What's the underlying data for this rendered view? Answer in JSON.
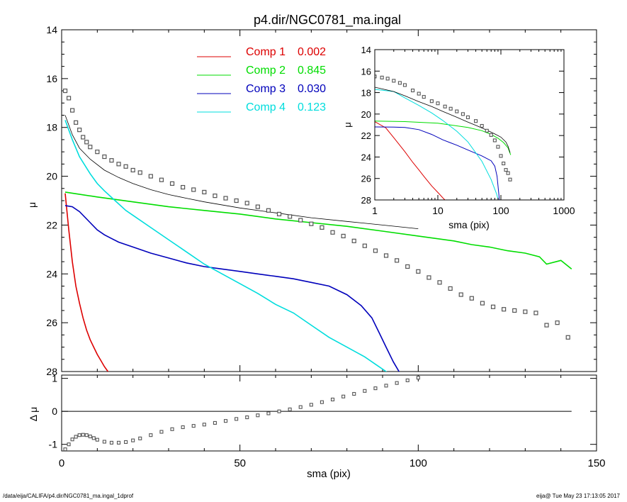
{
  "title": "p4.dir/NGC0781_ma.ingal",
  "footer": {
    "left": "/data/eija/CALIFA/p4.dir/NGC0781_ma.ingal_1dprof",
    "right": "eija@  Tue May 23 17:13:05 2017"
  },
  "chart_data": [
    {
      "type": "scatter",
      "panel": "main",
      "xlabel": "",
      "ylabel": "μ",
      "xlim": [
        0,
        150
      ],
      "ylim": [
        28,
        14
      ],
      "y_reversed": true,
      "yticks": [
        14,
        16,
        18,
        20,
        22,
        24,
        26,
        28
      ],
      "legend_placement": "top-center",
      "legend": [
        {
          "name": "Comp 1",
          "value": "0.002",
          "color": "#dd0000"
        },
        {
          "name": "Comp 2",
          "value": "0.845",
          "color": "#00dd00"
        },
        {
          "name": "Comp 3",
          "value": "0.030",
          "color": "#0000bb"
        },
        {
          "name": "Comp 4",
          "value": "0.123",
          "color": "#00dddd"
        }
      ],
      "observed": {
        "color": "#555555",
        "x": [
          1,
          2,
          3,
          4,
          5,
          6,
          7,
          8,
          10,
          12,
          14,
          16,
          18,
          20,
          22,
          25,
          28,
          31,
          34,
          37,
          40,
          43,
          46,
          49,
          52,
          55,
          58,
          61,
          64,
          67,
          70,
          73,
          76,
          79,
          82,
          85,
          88,
          91,
          94,
          97,
          100,
          103,
          106,
          109,
          112,
          115,
          118,
          121,
          124,
          127,
          130,
          133,
          136,
          139,
          142
        ],
        "y": [
          16.5,
          16.8,
          17.3,
          17.8,
          18.1,
          18.4,
          18.6,
          18.8,
          19.0,
          19.2,
          19.35,
          19.5,
          19.6,
          19.75,
          19.85,
          20.0,
          20.15,
          20.3,
          20.45,
          20.55,
          20.65,
          20.8,
          20.9,
          21.0,
          21.1,
          21.25,
          21.4,
          21.55,
          21.65,
          21.8,
          21.95,
          22.1,
          22.3,
          22.45,
          22.65,
          22.85,
          23.05,
          23.25,
          23.45,
          23.7,
          23.9,
          24.15,
          24.35,
          24.6,
          24.85,
          25.0,
          25.2,
          25.35,
          25.45,
          25.5,
          25.55,
          25.6,
          26.1,
          26.0,
          26.6
        ]
      },
      "model": {
        "color": "#000000",
        "x": [
          1,
          3,
          5,
          8,
          12,
          16,
          20,
          25,
          30,
          35,
          40,
          50,
          60,
          70,
          80,
          90,
          100
        ],
        "y": [
          17.5,
          18.3,
          18.85,
          19.3,
          19.75,
          20.05,
          20.3,
          20.55,
          20.75,
          20.9,
          21.05,
          21.3,
          21.5,
          21.7,
          21.85,
          22.0,
          22.15
        ]
      },
      "components": [
        {
          "name": "Comp 1",
          "color": "#dd0000",
          "x": [
            1,
            2,
            3,
            4,
            5,
            6,
            7,
            8,
            9,
            10,
            11,
            12,
            13,
            14
          ],
          "y": [
            20.7,
            22.2,
            23.5,
            24.5,
            25.2,
            25.8,
            26.3,
            26.7,
            27.0,
            27.3,
            27.55,
            27.8,
            28.0,
            28.2
          ]
        },
        {
          "name": "Comp 2",
          "color": "#00dd00",
          "x": [
            1,
            10,
            20,
            30,
            40,
            50,
            60,
            70,
            80,
            90,
            100,
            110,
            115,
            120,
            125,
            130,
            134,
            136,
            140,
            143
          ],
          "y": [
            20.65,
            20.85,
            21.05,
            21.25,
            21.4,
            21.55,
            21.75,
            21.9,
            22.05,
            22.25,
            22.45,
            22.65,
            22.8,
            22.9,
            23.05,
            23.15,
            23.3,
            23.6,
            23.45,
            23.8
          ]
        },
        {
          "name": "Comp 3",
          "color": "#0000bb",
          "x": [
            1,
            3,
            5,
            8,
            10,
            12,
            14,
            16,
            20,
            25,
            30,
            35,
            40,
            45,
            50,
            55,
            60,
            65,
            70,
            75,
            80,
            84,
            87,
            89,
            91,
            93,
            95,
            96
          ],
          "y": [
            21.2,
            21.25,
            21.45,
            21.9,
            22.2,
            22.4,
            22.55,
            22.7,
            22.9,
            23.15,
            23.35,
            23.55,
            23.7,
            23.8,
            23.9,
            24.0,
            24.1,
            24.2,
            24.35,
            24.5,
            24.85,
            25.3,
            25.8,
            26.4,
            27.0,
            27.6,
            28.1,
            28.3
          ]
        },
        {
          "name": "Comp 4",
          "color": "#00dddd",
          "x": [
            1,
            3,
            5,
            8,
            10,
            12,
            15,
            18,
            20,
            25,
            30,
            35,
            40,
            45,
            50,
            55,
            60,
            65,
            70,
            75,
            80,
            85,
            88,
            91,
            94,
            95
          ],
          "y": [
            17.7,
            18.5,
            19.2,
            19.9,
            20.3,
            20.6,
            21.0,
            21.4,
            21.6,
            22.1,
            22.6,
            23.1,
            23.6,
            24.0,
            24.4,
            24.8,
            25.25,
            25.6,
            26.1,
            26.6,
            27.0,
            27.4,
            27.7,
            28.0,
            28.3,
            28.4
          ]
        }
      ]
    },
    {
      "type": "scatter",
      "panel": "residual",
      "xlabel": "sma (pix)",
      "ylabel": "Δ μ",
      "xlim": [
        0,
        150
      ],
      "ylim": [
        -1.2,
        1.1
      ],
      "xticks": [
        0,
        50,
        100,
        150
      ],
      "yticks": [
        -1,
        0,
        1
      ],
      "zero_line": {
        "x": [
          0,
          143
        ],
        "y": 0
      },
      "residual": {
        "x": [
          1,
          2,
          3,
          4,
          5,
          6,
          7,
          8,
          9,
          10,
          12,
          14,
          16,
          18,
          20,
          22,
          25,
          28,
          31,
          34,
          37,
          40,
          43,
          46,
          49,
          52,
          55,
          58,
          61,
          64,
          67,
          70,
          73,
          76,
          79,
          82,
          85,
          88,
          91,
          94,
          97,
          100
        ],
        "y": [
          -1.15,
          -1.0,
          -0.85,
          -0.77,
          -0.72,
          -0.71,
          -0.72,
          -0.76,
          -0.81,
          -0.86,
          -0.92,
          -0.95,
          -0.95,
          -0.93,
          -0.88,
          -0.82,
          -0.72,
          -0.62,
          -0.54,
          -0.48,
          -0.44,
          -0.4,
          -0.35,
          -0.29,
          -0.23,
          -0.18,
          -0.12,
          -0.06,
          0.0,
          0.06,
          0.13,
          0.2,
          0.28,
          0.36,
          0.45,
          0.53,
          0.62,
          0.7,
          0.78,
          0.86,
          0.94,
          1.02
        ]
      }
    },
    {
      "type": "scatter",
      "panel": "inset",
      "xlabel": "sma (pix)",
      "ylabel": "μ",
      "x_scale": "log",
      "xlim": [
        1,
        1000
      ],
      "ylim": [
        28,
        14
      ],
      "y_reversed": true,
      "xticks": [
        1,
        10,
        100,
        1000
      ],
      "yticks": [
        14,
        16,
        18,
        20,
        22,
        24,
        26,
        28
      ],
      "observed": {
        "color": "#555555",
        "x": [
          1,
          1.3,
          1.6,
          2,
          2.5,
          3,
          4,
          5,
          6,
          8,
          10,
          13,
          16,
          20,
          25,
          30,
          40,
          50,
          60,
          70,
          80,
          90,
          100,
          110,
          120,
          130,
          140
        ],
        "y": [
          16.5,
          16.6,
          16.7,
          16.9,
          17.1,
          17.3,
          17.8,
          18.1,
          18.4,
          18.8,
          19.0,
          19.3,
          19.5,
          19.75,
          20.0,
          20.3,
          20.65,
          21.1,
          21.55,
          21.95,
          22.45,
          23.05,
          23.9,
          24.6,
          25.2,
          25.5,
          26.1
        ]
      },
      "model": {
        "color": "#000000",
        "x": [
          1,
          2,
          3,
          5,
          8,
          12,
          20,
          30,
          40,
          60,
          80,
          100,
          120,
          130,
          140
        ],
        "y": [
          17.5,
          17.9,
          18.3,
          18.85,
          19.3,
          19.75,
          20.3,
          20.75,
          21.05,
          21.5,
          21.85,
          22.15,
          22.6,
          23.0,
          23.6
        ]
      },
      "components": [
        {
          "name": "Comp 1",
          "color": "#dd0000",
          "x": [
            1,
            1.5,
            2,
            3,
            4,
            5,
            6,
            8,
            10,
            12,
            14
          ],
          "y": [
            20.7,
            21.3,
            22.2,
            23.5,
            24.5,
            25.2,
            25.8,
            26.7,
            27.3,
            27.8,
            28.2
          ]
        },
        {
          "name": "Comp 2",
          "color": "#00dd00",
          "x": [
            1,
            3,
            10,
            30,
            50,
            70,
            90,
            110,
            130,
            143
          ],
          "y": [
            20.65,
            20.7,
            20.85,
            21.25,
            21.55,
            21.9,
            22.25,
            22.65,
            23.15,
            23.8
          ]
        },
        {
          "name": "Comp 3",
          "color": "#0000bb",
          "x": [
            1,
            2,
            3,
            5,
            8,
            12,
            20,
            30,
            50,
            70,
            80,
            87,
            91,
            94,
            96
          ],
          "y": [
            21.2,
            21.22,
            21.25,
            21.45,
            21.9,
            22.4,
            22.9,
            23.35,
            23.9,
            24.35,
            24.85,
            25.8,
            27.0,
            27.8,
            28.3
          ]
        },
        {
          "name": "Comp 4",
          "color": "#00dddd",
          "x": [
            1,
            2,
            3,
            5,
            8,
            12,
            20,
            30,
            50,
            70,
            85,
            91,
            95
          ],
          "y": [
            17.7,
            17.9,
            18.5,
            19.2,
            19.9,
            20.6,
            21.6,
            22.6,
            24.4,
            26.1,
            27.4,
            28.0,
            28.4
          ]
        }
      ]
    }
  ]
}
